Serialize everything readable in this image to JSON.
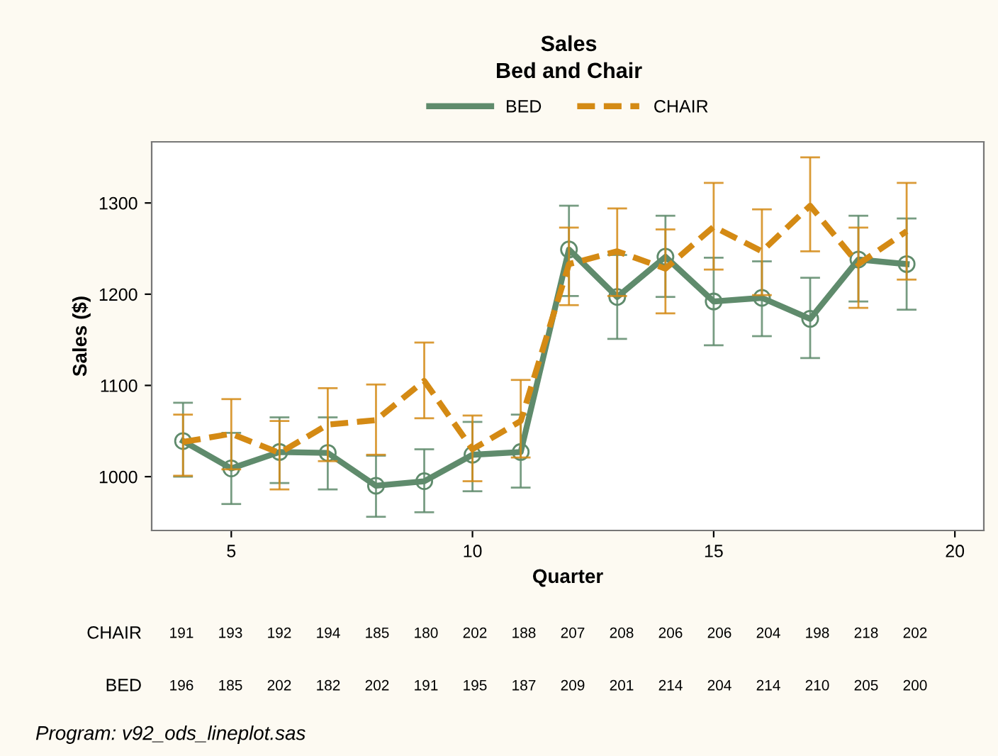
{
  "chart_data": {
    "type": "line",
    "title": "Sales",
    "subtitle": "Bed and Chair",
    "xlabel": "Quarter",
    "ylabel": "Sales ($)",
    "x": [
      4,
      5,
      6,
      7,
      8,
      9,
      10,
      11,
      12,
      13,
      14,
      15,
      16,
      17,
      18,
      19
    ],
    "series": [
      {
        "name": "BED",
        "color": "#5f8b6c",
        "marker": "circle",
        "line_style": "solid",
        "values": [
          1039,
          1009,
          1027,
          1026,
          990,
          995,
          1024,
          1027,
          1249,
          1197,
          1241,
          1192,
          1196,
          1173,
          1238,
          1233
        ],
        "errors": [
          [
            1000,
            1081
          ],
          [
            970,
            1048
          ],
          [
            993,
            1065
          ],
          [
            986,
            1065
          ],
          [
            956,
            1023
          ],
          [
            961,
            1030
          ],
          [
            984,
            1060
          ],
          [
            988,
            1068
          ],
          [
            1198,
            1297
          ],
          [
            1151,
            1243
          ],
          [
            1197,
            1286
          ],
          [
            1144,
            1240
          ],
          [
            1154,
            1236
          ],
          [
            1130,
            1218
          ],
          [
            1192,
            1286
          ],
          [
            1183,
            1283
          ]
        ]
      },
      {
        "name": "CHAIR",
        "color": "#d48a14",
        "marker": "none",
        "line_style": "dashed",
        "values": [
          1038,
          1047,
          1026,
          1057,
          1062,
          1105,
          1030,
          1061,
          1233,
          1247,
          1228,
          1274,
          1247,
          1297,
          1233,
          1269
        ],
        "errors": [
          [
            1001,
            1068
          ],
          [
            1008,
            1085
          ],
          [
            986,
            1061
          ],
          [
            1017,
            1097
          ],
          [
            1024,
            1101
          ],
          [
            1064,
            1147
          ],
          [
            995,
            1067
          ],
          [
            1021,
            1106
          ],
          [
            1188,
            1273
          ],
          [
            1198,
            1294
          ],
          [
            1179,
            1271
          ],
          [
            1227,
            1322
          ],
          [
            1199,
            1293
          ],
          [
            1247,
            1350
          ],
          [
            1185,
            1273
          ],
          [
            1216,
            1322
          ]
        ]
      }
    ],
    "xlim": [
      3.35,
      20.6
    ],
    "xticks": [
      5,
      10,
      15,
      20
    ],
    "ylim": [
      941,
      1367
    ],
    "yticks": [
      1000,
      1100,
      1200,
      1300
    ],
    "grid": false,
    "legend": "top",
    "annotations": [
      "CHAIR",
      "191",
      "193",
      "192",
      "194",
      "185",
      "180",
      "202",
      "188",
      "207",
      "208",
      "206",
      "206",
      "204",
      "198",
      "218",
      "202",
      "BED",
      "196",
      "185",
      "202",
      "182",
      "202",
      "191",
      "195",
      "187",
      "209",
      "201",
      "214",
      "204",
      "214",
      "210",
      "205",
      "200",
      "Program: v92_ods_lineplot.sas"
    ]
  }
}
